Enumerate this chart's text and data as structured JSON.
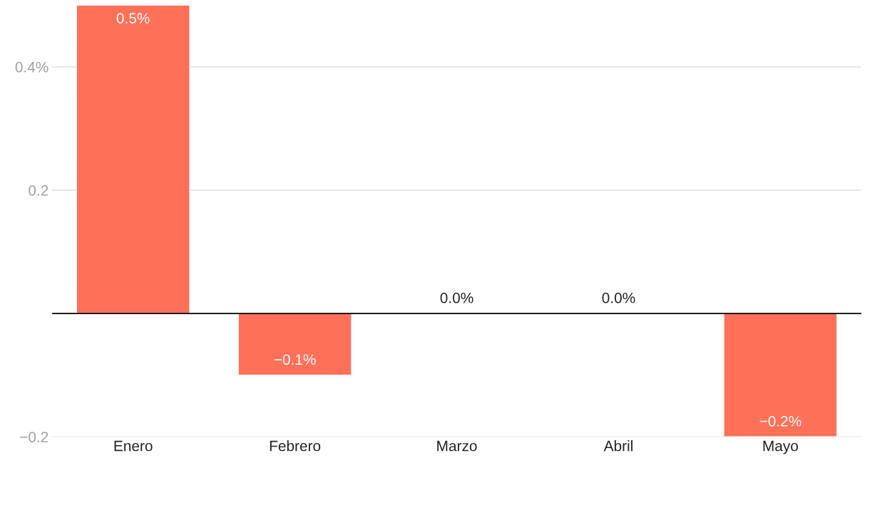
{
  "chart_data": {
    "type": "bar",
    "categories": [
      "Enero",
      "Febrero",
      "Marzo",
      "Abril",
      "Mayo"
    ],
    "values": [
      0.5,
      -0.1,
      0.0,
      0.0,
      -0.2
    ],
    "value_labels": [
      "0.5%",
      "−0.1%",
      "0.0%",
      "0.0%",
      "−0.2%"
    ],
    "color": "#ff7059",
    "ylim": [
      -0.2,
      0.5
    ],
    "yticks": [
      {
        "value": -0.2,
        "label": "−0.2"
      },
      {
        "value": 0,
        "label": null
      },
      0.2,
      {
        "value": 0.4,
        "label": "0.4%"
      }
    ],
    "ref_lines": [
      {
        "axis": "y",
        "value": 0,
        "color": "#000000"
      }
    ],
    "grid": "y"
  }
}
